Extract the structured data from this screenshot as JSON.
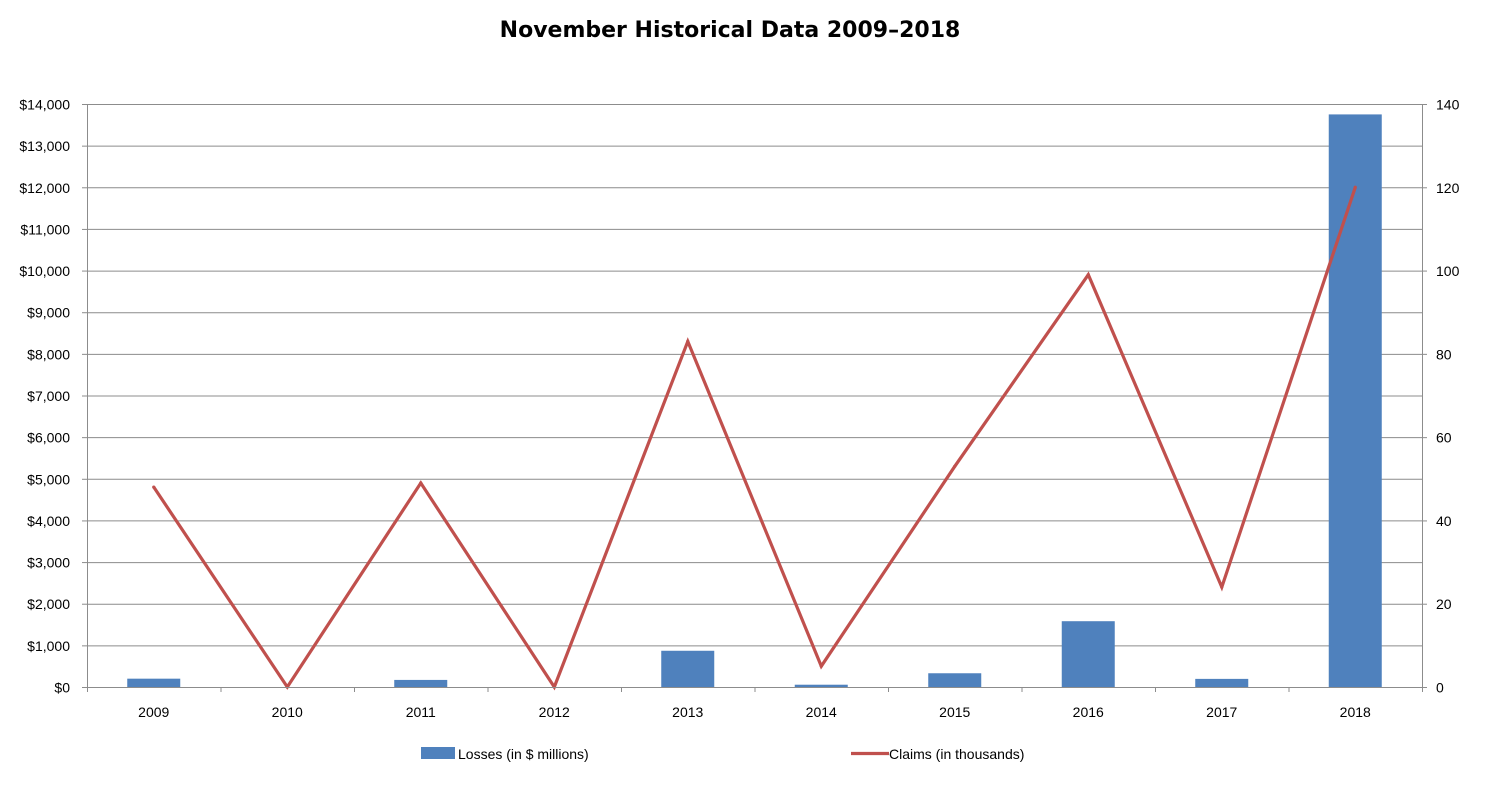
{
  "chart_data": {
    "type": "bar",
    "title": "November Historical Data 2009–2018",
    "categories": [
      "2009",
      "2010",
      "2011",
      "2012",
      "2013",
      "2014",
      "2015",
      "2016",
      "2017",
      "2018"
    ],
    "series": [
      {
        "name": "Losses (in $ millions)",
        "type": "bar",
        "axis": "left",
        "color": "#4F81BD",
        "values": [
          200,
          0,
          170,
          0,
          870,
          55,
          330,
          1580,
          195,
          13750
        ]
      },
      {
        "name": "Claims (in thousands)",
        "type": "line",
        "axis": "right",
        "color": "#C0504D",
        "values": [
          48,
          0,
          49,
          0,
          83,
          5,
          53,
          99,
          24,
          120
        ]
      }
    ],
    "y_left": {
      "ylim": [
        0,
        14000
      ],
      "ticks": [
        0,
        1000,
        2000,
        3000,
        4000,
        5000,
        6000,
        7000,
        8000,
        9000,
        10000,
        11000,
        12000,
        13000,
        14000
      ],
      "tick_labels": [
        "$0",
        "$1,000",
        "$2,000",
        "$3,000",
        "$4,000",
        "$5,000",
        "$6,000",
        "$7,000",
        "$8,000",
        "$9,000",
        "$10,000",
        "$11,000",
        "$12,000",
        "$13,000",
        "$14,000"
      ]
    },
    "y_right": {
      "ylim": [
        0,
        140
      ],
      "ticks": [
        0,
        20,
        40,
        60,
        80,
        100,
        120,
        140
      ],
      "tick_labels": [
        "0",
        "20",
        "40",
        "60",
        "80",
        "100",
        "120",
        "140"
      ]
    },
    "grid": true,
    "legend_position": "bottom"
  }
}
